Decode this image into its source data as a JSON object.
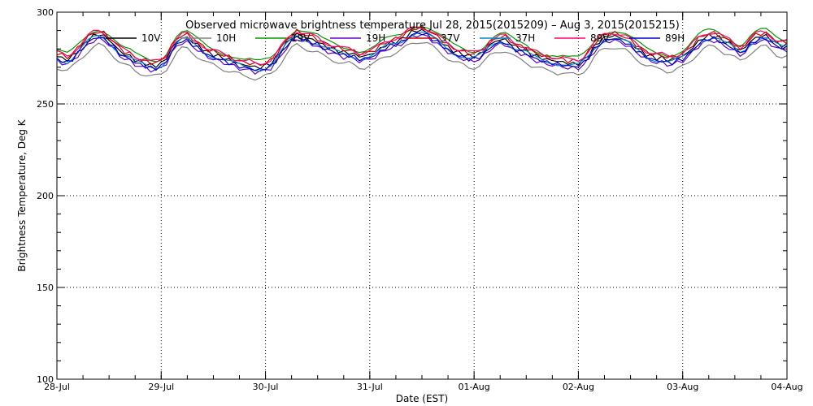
{
  "chart_data": {
    "type": "line",
    "title": "Observed microwave brightness temperature  Jul 28, 2015(2015209) – Aug  3, 2015(2015215)",
    "xlabel": "Date (EST)",
    "ylabel": "Brightness Temperature, Deg K",
    "ylim": [
      100,
      300
    ],
    "xlim": [
      0,
      7
    ],
    "yticks": [
      100,
      150,
      200,
      250,
      300
    ],
    "xticks": [
      {
        "value": 0,
        "label": "28-Jul"
      },
      {
        "value": 1,
        "label": "29-Jul"
      },
      {
        "value": 2,
        "label": "30-Jul"
      },
      {
        "value": 3,
        "label": "31-Jul"
      },
      {
        "value": 4,
        "label": "01-Aug"
      },
      {
        "value": 5,
        "label": "02-Aug"
      },
      {
        "value": 6,
        "label": "03-Aug"
      },
      {
        "value": 7,
        "label": "04-Aug"
      }
    ],
    "grid": true,
    "legend_position": "top",
    "base_curve": {
      "x": [
        0,
        0.05,
        0.1,
        0.15,
        0.2,
        0.25,
        0.3,
        0.35,
        0.4,
        0.45,
        0.5,
        0.55,
        0.6,
        0.65,
        0.7,
        0.75,
        0.8,
        0.85,
        0.9,
        0.95,
        1.0,
        1.05,
        1.1,
        1.15,
        1.2,
        1.25,
        1.3,
        1.35,
        1.4,
        1.45,
        1.5,
        1.55,
        1.6,
        1.65,
        1.7,
        1.75,
        1.8,
        1.85,
        1.9,
        1.95,
        2.0,
        2.05,
        2.1,
        2.15,
        2.2,
        2.25,
        2.3,
        2.35,
        2.4,
        2.45,
        2.5,
        2.55,
        2.6,
        2.65,
        2.7,
        2.75,
        2.8,
        2.85,
        2.9,
        2.95,
        3.0,
        3.05,
        3.1,
        3.15,
        3.2,
        3.25,
        3.3,
        3.35,
        3.4,
        3.45,
        3.5,
        3.55,
        3.6,
        3.65,
        3.7,
        3.75,
        3.8,
        3.85,
        3.9,
        3.95,
        4.0,
        4.05,
        4.1,
        4.15,
        4.2,
        4.25,
        4.3,
        4.35,
        4.4,
        4.45,
        4.5,
        4.55,
        4.6,
        4.65,
        4.7,
        4.75,
        4.8,
        4.85,
        4.9,
        4.95,
        5.0,
        5.05,
        5.1,
        5.15,
        5.2,
        5.25,
        5.3,
        5.35,
        5.4,
        5.45,
        5.5,
        5.55,
        5.6,
        5.65,
        5.7,
        5.75,
        5.8,
        5.85,
        5.9,
        5.95,
        6.0,
        6.05,
        6.1,
        6.15,
        6.2,
        6.25,
        6.3,
        6.35,
        6.4,
        6.45,
        6.5,
        6.55,
        6.6,
        6.65,
        6.7,
        6.75,
        6.8,
        6.85,
        6.9,
        6.95,
        7.0
      ],
      "y": [
        276,
        275,
        274,
        276,
        279,
        282,
        285,
        287,
        288,
        287,
        285,
        282,
        279,
        277,
        276,
        274,
        273,
        272,
        271,
        271,
        272,
        275,
        280,
        284,
        286,
        286,
        284,
        282,
        280,
        278,
        277,
        276,
        275,
        274,
        273,
        272,
        271,
        271,
        270,
        270,
        271,
        272,
        275,
        279,
        283,
        286,
        288,
        287,
        286,
        285,
        284,
        282,
        281,
        280,
        279,
        278,
        278,
        277,
        276,
        276,
        277,
        278,
        280,
        282,
        283,
        284,
        285,
        287,
        289,
        290,
        290,
        289,
        287,
        285,
        283,
        281,
        279,
        278,
        277,
        276,
        276,
        277,
        279,
        282,
        284,
        285,
        285,
        283,
        281,
        280,
        279,
        277,
        276,
        275,
        274,
        274,
        273,
        273,
        272,
        272,
        272,
        274,
        277,
        281,
        284,
        286,
        287,
        287,
        286,
        285,
        283,
        281,
        279,
        277,
        276,
        275,
        275,
        274,
        274,
        275,
        276,
        278,
        281,
        284,
        286,
        287,
        287,
        286,
        284,
        283,
        281,
        279,
        281,
        284,
        286,
        287,
        287,
        285,
        283,
        282,
        282
      ]
    },
    "series": [
      {
        "name": "10V",
        "color": "#000000",
        "offset": 0.0
      },
      {
        "name": "10H",
        "color": "#808080",
        "offset": -6.0
      },
      {
        "name": "19V",
        "color": "#009900",
        "offset": 3.0
      },
      {
        "name": "19H",
        "color": "#6600cc",
        "offset": -2.5
      },
      {
        "name": "37V",
        "color": "#cc0000",
        "offset": 1.5
      },
      {
        "name": "37H",
        "color": "#0088cc",
        "offset": -1.0
      },
      {
        "name": "89V",
        "color": "#ff0066",
        "offset": 2.0
      },
      {
        "name": "89H",
        "color": "#0000cc",
        "offset": -1.5
      }
    ]
  }
}
